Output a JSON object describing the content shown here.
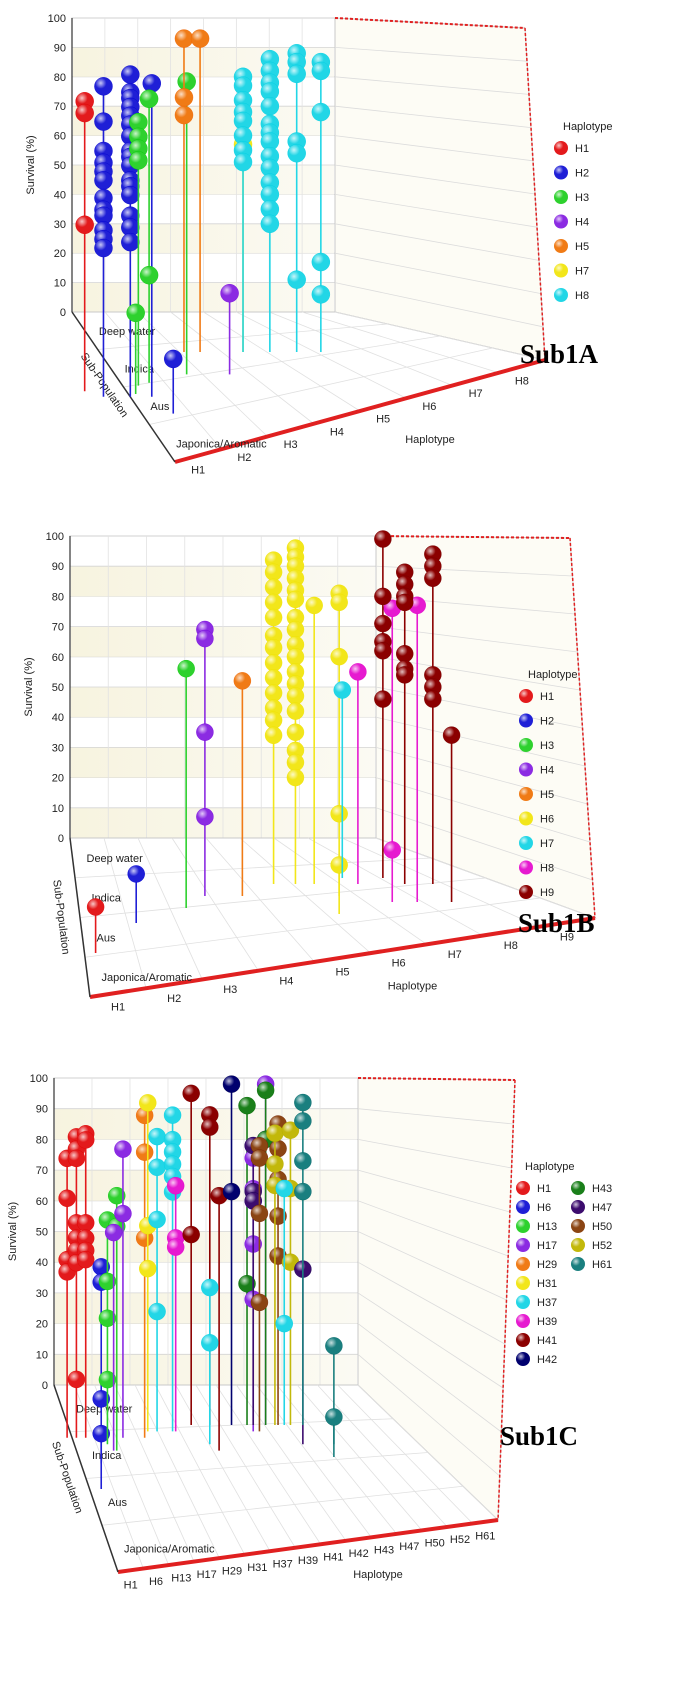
{
  "figure": {
    "panels": [
      "Sub1A",
      "Sub1B",
      "Sub1C"
    ]
  },
  "chart_data": [
    {
      "type": "scatter",
      "subtype": "3d-lollipop",
      "title": "Sub1A",
      "xlabel": "Haplotype",
      "ylabel": "Survival (%)",
      "zlabel": "Sub-Population",
      "ylim": [
        0,
        100
      ],
      "yticks": [
        "0",
        "10",
        "20",
        "30",
        "40",
        "50",
        "60",
        "70",
        "80",
        "90",
        "100"
      ],
      "haplotypes": [
        "H1",
        "H2",
        "H3",
        "H4",
        "H5",
        "H7",
        "H8"
      ],
      "x_ticks": [
        "H1",
        "H2",
        "H3",
        "H4",
        "H5",
        "H6",
        "H7",
        "H8"
      ],
      "subpopulations": [
        "Deep water",
        "Indica",
        "Aus",
        "Japonica/Aromatic"
      ],
      "legend_title": "Haplotype",
      "colors": {
        "H1": "#e31a1c",
        "H2": "#1f1fd6",
        "H3": "#2ed12e",
        "H4": "#8b2be2",
        "H5": "#f07b16",
        "H7": "#f2e61a",
        "H8": "#22d6e6"
      },
      "points": [
        {
          "h": "H1",
          "x": 0.05,
          "z": 1.4,
          "y": [
            85,
            81,
            43
          ]
        },
        {
          "h": "H2",
          "x": 0.4,
          "z": 1.6,
          "y": [
            92,
            80,
            70,
            66,
            63,
            60,
            54,
            50,
            48,
            43,
            40,
            37
          ]
        },
        {
          "h": "H2",
          "x": 0.9,
          "z": 1.6,
          "y": [
            96,
            90,
            88,
            85,
            82,
            79,
            75,
            70,
            68,
            65,
            60,
            58,
            55,
            48,
            44,
            39
          ]
        },
        {
          "h": "H2",
          "x": 1.3,
          "z": 1.6,
          "y": [
            93
          ]
        },
        {
          "h": "H2",
          "x": 1.7,
          "z": 2.2,
          "y": [
            5
          ]
        },
        {
          "h": "H3",
          "x": 1.0,
          "z": 1.5,
          "y": [
            14
          ]
        },
        {
          "h": "H3",
          "x": 1.05,
          "z": 1.2,
          "y": [
            76,
            71,
            67,
            63
          ]
        },
        {
          "h": "H3",
          "x": 1.25,
          "z": 1.1,
          "y": [
            83,
            23
          ]
        },
        {
          "h": "H3",
          "x": 1.95,
          "z": 0.8,
          "y": [
            86
          ]
        },
        {
          "h": "H4",
          "x": 2.75,
          "z": 0.8,
          "y": [
            14
          ]
        },
        {
          "h": "H5",
          "x": 1.9,
          "z": 0.0,
          "y": [
            93,
            73,
            67
          ]
        },
        {
          "h": "H5",
          "x": 2.2,
          "z": 0.0,
          "y": [
            93
          ]
        },
        {
          "h": "H7",
          "x": 3.0,
          "z": 0.0,
          "y": [
            57
          ]
        },
        {
          "h": "H8",
          "x": 3.0,
          "z": 0.0,
          "y": [
            80,
            77,
            72,
            68,
            65,
            60,
            55,
            51
          ]
        },
        {
          "h": "H8",
          "x": 3.5,
          "z": 0.0,
          "y": [
            86,
            82,
            78,
            75,
            70,
            64,
            61,
            58,
            53,
            49,
            44,
            40,
            35,
            30
          ]
        },
        {
          "h": "H8",
          "x": 4.0,
          "z": 0.0,
          "y": [
            88,
            85,
            81,
            58,
            54,
            11
          ]
        },
        {
          "h": "H8",
          "x": 4.45,
          "z": 0.0,
          "y": [
            85,
            82,
            68,
            17,
            6
          ]
        }
      ]
    },
    {
      "type": "scatter",
      "subtype": "3d-lollipop",
      "title": "Sub1B",
      "xlabel": "Haplotype",
      "ylabel": "Survival (%)",
      "zlabel": "Sub-Population",
      "ylim": [
        0,
        100
      ],
      "yticks": [
        "0",
        "10",
        "20",
        "30",
        "40",
        "50",
        "60",
        "70",
        "80",
        "90",
        "100"
      ],
      "haplotypes": [
        "H1",
        "H2",
        "H3",
        "H4",
        "H5",
        "H6",
        "H7",
        "H8",
        "H9"
      ],
      "x_ticks": [
        "H1",
        "H2",
        "H3",
        "H4",
        "H5",
        "H6",
        "H7",
        "H8",
        "H9"
      ],
      "subpopulations": [
        "Deep water",
        "Indica",
        "Aus",
        "Japonica/Aromatic"
      ],
      "legend_title": "Haplotype",
      "colors": {
        "H1": "#e31a1c",
        "H2": "#1f1fd6",
        "H3": "#2ed12e",
        "H4": "#8b2be2",
        "H5": "#f07b16",
        "H6": "#f2e61a",
        "H7": "#22d6e6",
        "H8": "#e61ad0",
        "H9": "#8b0000"
      },
      "points": [
        {
          "h": "H1",
          "x": 0.25,
          "z": 2.5,
          "y": [
            2
          ]
        },
        {
          "h": "H2",
          "x": 0.9,
          "z": 1.5,
          "y": [
            3
          ]
        },
        {
          "h": "H3",
          "x": 1.7,
          "z": 1.0,
          "y": [
            66
          ]
        },
        {
          "h": "H4",
          "x": 2.0,
          "z": 0.6,
          "y": [
            75,
            72,
            41,
            13
          ]
        },
        {
          "h": "H5",
          "x": 2.6,
          "z": 0.6,
          "y": [
            58
          ]
        },
        {
          "h": "H6",
          "x": 3.1,
          "z": 0.2,
          "y": [
            94,
            90,
            85,
            80,
            75,
            69,
            65,
            60,
            55,
            50,
            45,
            41,
            36
          ]
        },
        {
          "h": "H6",
          "x": 3.45,
          "z": 0.2,
          "y": [
            98,
            95,
            92,
            88,
            84,
            81,
            75,
            71,
            66,
            62,
            57,
            53,
            49,
            44,
            37,
            31,
            27,
            22
          ]
        },
        {
          "h": "H6",
          "x": 3.75,
          "z": 0.2,
          "y": [
            79
          ]
        },
        {
          "h": "H6",
          "x": 4.15,
          "z": 0.6,
          "y": [
            87,
            84,
            66,
            14
          ]
        },
        {
          "h": "H6",
          "x": 4.15,
          "z": 1.2,
          "y": [
            3
          ]
        },
        {
          "h": "H7",
          "x": 4.2,
          "z": 0.0,
          "y": [
            49
          ]
        },
        {
          "h": "H8",
          "x": 4.45,
          "z": 0.2,
          "y": [
            57
          ]
        },
        {
          "h": "H8",
          "x": 5.0,
          "z": 0.8,
          "y": [
            84,
            4
          ]
        },
        {
          "h": "H8",
          "x": 5.4,
          "z": 0.8,
          "y": [
            85
          ]
        },
        {
          "h": "H9",
          "x": 4.85,
          "z": 0.0,
          "y": [
            99,
            80,
            71,
            65,
            62,
            46
          ]
        },
        {
          "h": "H9",
          "x": 5.2,
          "z": 0.2,
          "y": [
            90,
            86,
            82,
            80,
            63,
            58,
            56
          ]
        },
        {
          "h": "H9",
          "x": 5.65,
          "z": 0.2,
          "y": [
            96,
            92,
            88,
            56,
            52,
            48
          ]
        },
        {
          "h": "H9",
          "x": 5.95,
          "z": 0.8,
          "y": [
            42
          ]
        }
      ]
    },
    {
      "type": "scatter",
      "subtype": "3d-lollipop",
      "title": "Sub1C",
      "xlabel": "Haplotype",
      "ylabel": "Survival (%)",
      "zlabel": "Sub-Population",
      "ylim": [
        0,
        100
      ],
      "yticks": [
        "0",
        "10",
        "20",
        "30",
        "40",
        "50",
        "60",
        "70",
        "80",
        "90",
        "100"
      ],
      "haplotypes": [
        "H1",
        "H6",
        "H13",
        "H17",
        "H29",
        "H31",
        "H37",
        "H39",
        "H41",
        "H42",
        "H43",
        "H47",
        "H50",
        "H52",
        "H61"
      ],
      "x_ticks": [
        "H1",
        "H6",
        "H13",
        "H17",
        "H29",
        "H31",
        "H37",
        "H39",
        "H41",
        "H42",
        "H43",
        "H47",
        "H50",
        "H52",
        "H61"
      ],
      "subpopulations": [
        "Deep water",
        "Indica",
        "Aus",
        "Japonica/Aromatic"
      ],
      "legend_title": "Haplotype",
      "colors": {
        "H1": "#e31a1c",
        "H6": "#1f1fd6",
        "H13": "#2ed12e",
        "H17": "#8b2be2",
        "H29": "#f07b16",
        "H31": "#f2e61a",
        "H37": "#22d6e6",
        "H39": "#e61ad0",
        "H41": "#8b0000",
        "H42": "#00006e",
        "H43": "#1a7f1a",
        "H47": "#3c0c6e",
        "H50": "#8b4513",
        "H52": "#c2b80a",
        "H61": "#1a7f7f"
      },
      "points": [
        {
          "h": "H1",
          "x": 0.05,
          "z": 0.4,
          "y": [
            78,
            65,
            45,
            41
          ]
        },
        {
          "h": "H1",
          "x": 0.2,
          "z": 0.4,
          "y": [
            85,
            81,
            78,
            57,
            52,
            48,
            44,
            6
          ]
        },
        {
          "h": "H1",
          "x": 0.35,
          "z": 0.4,
          "y": [
            86,
            84,
            57,
            52,
            48,
            45
          ]
        },
        {
          "h": "H6",
          "x": 0.6,
          "z": 1.2,
          "y": [
            51,
            46,
            8
          ]
        },
        {
          "h": "H6",
          "x": 0.6,
          "z": 2.0,
          "y": [
            5
          ]
        },
        {
          "h": "H13",
          "x": 0.7,
          "z": 0.6,
          "y": [
            60,
            40,
            28,
            8
          ]
        },
        {
          "h": "H13",
          "x": 0.85,
          "z": 0.8,
          "y": [
            70,
            60
          ]
        },
        {
          "h": "H17",
          "x": 0.95,
          "z": 0.4,
          "y": [
            81,
            60
          ]
        },
        {
          "h": "H17",
          "x": 0.8,
          "z": 0.8,
          "y": [
            58
          ]
        },
        {
          "h": "H29",
          "x": 1.3,
          "z": 0.4,
          "y": [
            92,
            80,
            52
          ]
        },
        {
          "h": "H31",
          "x": 1.35,
          "z": 0.2,
          "y": [
            94,
            54,
            40
          ]
        },
        {
          "h": "H37",
          "x": 1.5,
          "z": 0.2,
          "y": [
            83,
            73,
            56,
            26
          ]
        },
        {
          "h": "H37",
          "x": 1.75,
          "z": 0.2,
          "y": [
            90,
            82,
            78,
            74,
            70,
            65
          ]
        },
        {
          "h": "H39",
          "x": 1.8,
          "z": 0.2,
          "y": [
            67,
            50,
            47
          ]
        },
        {
          "h": "H41",
          "x": 2.05,
          "z": 0.0,
          "y": [
            95,
            49
          ]
        },
        {
          "h": "H41",
          "x": 2.35,
          "z": 0.0,
          "y": [
            88,
            84
          ]
        },
        {
          "h": "H41",
          "x": 2.5,
          "z": 0.8,
          "y": [
            70
          ]
        },
        {
          "h": "H37",
          "x": 2.35,
          "z": 0.6,
          "y": [
            38,
            20
          ]
        },
        {
          "h": "H42",
          "x": 2.7,
          "z": 0.0,
          "y": [
            98,
            63
          ]
        },
        {
          "h": "H43",
          "x": 2.95,
          "z": 0.0,
          "y": [
            91,
            33
          ]
        },
        {
          "h": "H17",
          "x": 3.05,
          "z": 0.2,
          "y": [
            80,
            76,
            66,
            62,
            48,
            30
          ]
        },
        {
          "h": "H47",
          "x": 3.05,
          "z": 0.0,
          "y": [
            78,
            63,
            60
          ]
        },
        {
          "h": "H17",
          "x": 3.25,
          "z": 0.0,
          "y": [
            98,
            80
          ]
        },
        {
          "h": "H43",
          "x": 3.25,
          "z": 0.0,
          "y": [
            96,
            80
          ]
        },
        {
          "h": "H50",
          "x": 3.15,
          "z": 0.2,
          "y": [
            80,
            76,
            58,
            29
          ]
        },
        {
          "h": "H50",
          "x": 3.45,
          "z": 0.0,
          "y": [
            85,
            77,
            67,
            55,
            42
          ]
        },
        {
          "h": "H52",
          "x": 3.4,
          "z": 0.0,
          "y": [
            82,
            72,
            65
          ]
        },
        {
          "h": "H52",
          "x": 3.65,
          "z": 0.0,
          "y": [
            83,
            64,
            40
          ]
        },
        {
          "h": "H37",
          "x": 3.55,
          "z": 0.0,
          "y": [
            64,
            20
          ]
        },
        {
          "h": "H47",
          "x": 3.85,
          "z": 0.6,
          "y": [
            44
          ]
        },
        {
          "h": "H61",
          "x": 3.85,
          "z": 0.0,
          "y": [
            92,
            86,
            73,
            63
          ]
        },
        {
          "h": "H61",
          "x": 4.35,
          "z": 0.6,
          "y": [
            19
          ]
        },
        {
          "h": "H61",
          "x": 4.35,
          "z": 1.0,
          "y": [
            0
          ]
        }
      ]
    }
  ]
}
